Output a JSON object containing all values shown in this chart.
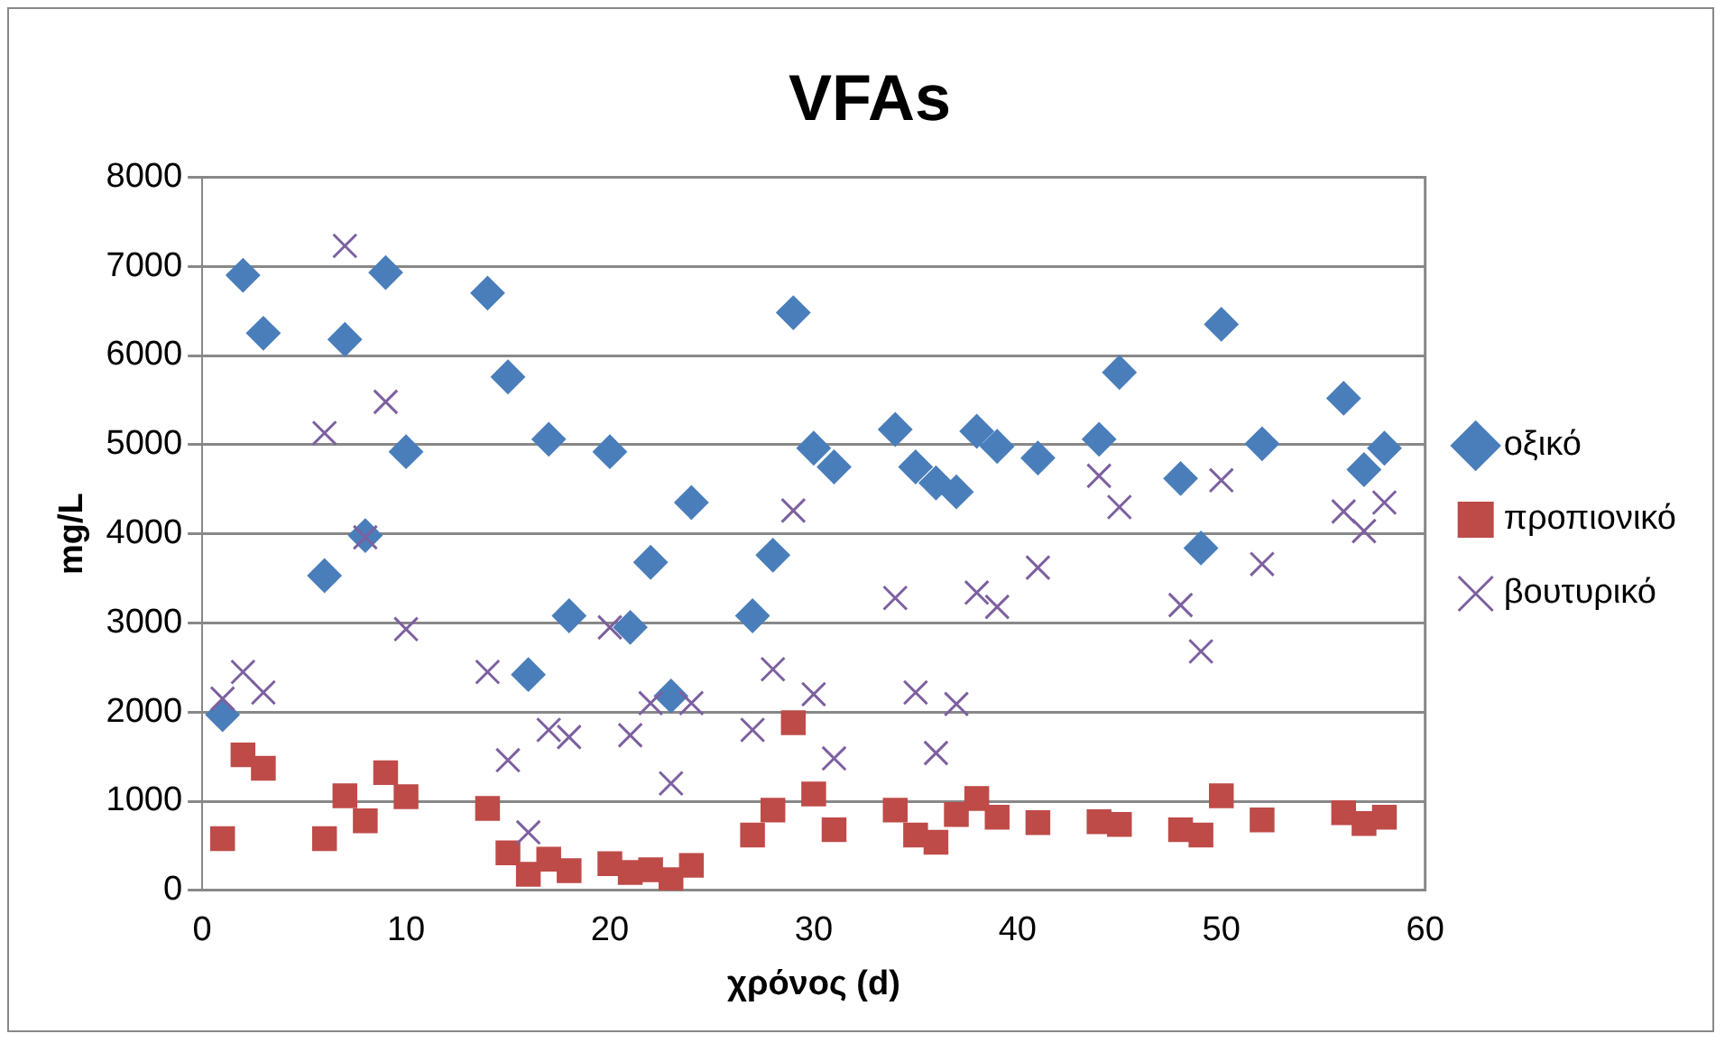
{
  "chart_data": {
    "type": "scatter",
    "title": "VFAs",
    "xlabel": "χρόνος (d)",
    "ylabel": "mg/L",
    "xlim": [
      0,
      60
    ],
    "xticks": [
      0,
      10,
      20,
      30,
      40,
      50,
      60
    ],
    "ylim": [
      0,
      8000
    ],
    "yticks": [
      0,
      1000,
      2000,
      3000,
      4000,
      5000,
      6000,
      7000,
      8000
    ],
    "grid": "y",
    "legend": "right",
    "x": [
      1,
      2,
      3,
      6,
      7,
      8,
      9,
      10,
      14,
      15,
      16,
      17,
      18,
      20,
      21,
      22,
      23,
      24,
      27,
      28,
      29,
      30,
      31,
      34,
      35,
      36,
      37,
      38,
      39,
      41,
      44,
      45,
      48,
      49,
      50,
      52,
      56,
      57,
      58
    ],
    "series": [
      {
        "name": "οξικό",
        "color": "#4a7ebb",
        "marker": "diamond",
        "values": [
          1970,
          6900,
          6250,
          3530,
          6180,
          3980,
          6930,
          4920,
          6700,
          5760,
          2420,
          5060,
          3080,
          4920,
          2950,
          3680,
          2180,
          4350,
          3080,
          3760,
          6480,
          4960,
          4750,
          5170,
          4750,
          4570,
          4470,
          5150,
          4980,
          4850,
          5060,
          5810,
          4620,
          3840,
          6350,
          5010,
          5520,
          4720,
          4960
        ]
      },
      {
        "name": "προπιονικό",
        "color": "#be4b48",
        "marker": "square",
        "values": [
          580,
          1520,
          1370,
          580,
          1060,
          780,
          1320,
          1050,
          920,
          420,
          180,
          350,
          220,
          300,
          200,
          230,
          120,
          280,
          620,
          900,
          1880,
          1080,
          680,
          900,
          620,
          540,
          850,
          1030,
          820,
          760,
          770,
          740,
          680,
          620,
          1060,
          790,
          870,
          750,
          820
        ]
      },
      {
        "name": "βουτυρικό",
        "color": "#7d60a0",
        "marker": "cross",
        "values": [
          2150,
          2450,
          2220,
          5130,
          7230,
          3960,
          5480,
          2930,
          2450,
          1460,
          650,
          1800,
          1720,
          2950,
          1740,
          2100,
          1200,
          2100,
          1800,
          2480,
          4260,
          2200,
          1480,
          3280,
          2220,
          1540,
          2090,
          3340,
          3180,
          3620,
          4650,
          4300,
          3200,
          2680,
          4600,
          3660,
          4250,
          4030,
          4350
        ]
      }
    ]
  }
}
